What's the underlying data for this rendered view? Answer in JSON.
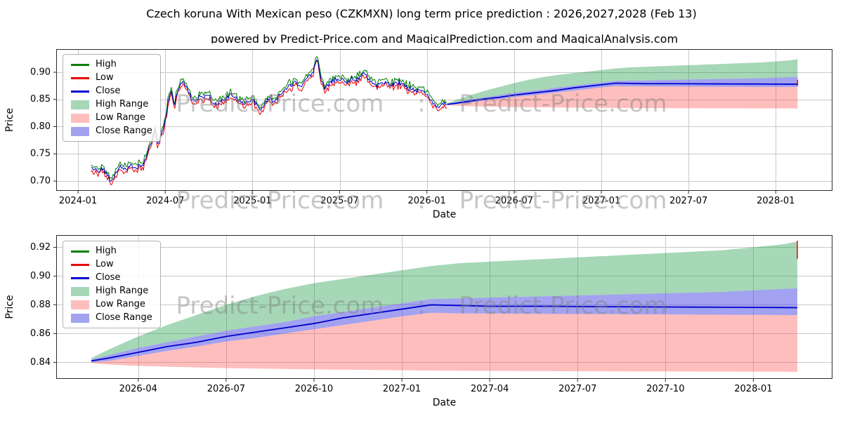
{
  "header": {
    "title": "Czech koruna With Mexican peso (CZKMXN) long term price prediction : 2026,2027,2028 (Feb 13)",
    "subtitle": "powered by Predict-Price.com and MagicalPrediction.com and MagicalAnalysis.com"
  },
  "watermark": {
    "text": "Predict-Price.com",
    "separator": ":"
  },
  "chart_data": {
    "type": "line",
    "title": "Czech koruna With Mexican peso (CZKMXN) long term price prediction : 2026,2027,2028 (Feb 13)",
    "subtitle": "powered by Predict-Price.com and MagicalPrediction.com and MagicalAnalysis.com",
    "grid": true,
    "legend_position": "upper left",
    "x_unit": "months_since_2024_01",
    "colors": {
      "high": "#008000",
      "low": "#e60000",
      "close": "#0000cd",
      "high_range": "rgba(0,140,50,0.35)",
      "low_range": "rgba(255,70,70,0.35)",
      "close_range": "rgba(70,70,225,0.5)",
      "grid": "#c9c9c9",
      "axis": "#2b2b2b"
    },
    "legend": {
      "items": [
        {
          "label": "High",
          "swatch": "line",
          "color": "#008000"
        },
        {
          "label": "Low",
          "swatch": "line",
          "color": "#e60000"
        },
        {
          "label": "Close",
          "swatch": "line",
          "color": "#0000cd"
        },
        {
          "label": "High Range",
          "swatch": "patch",
          "color": "rgba(0,140,50,0.35)"
        },
        {
          "label": "Low Range",
          "swatch": "patch",
          "color": "rgba(255,70,70,0.35)"
        },
        {
          "label": "Close Range",
          "swatch": "patch",
          "color": "rgba(70,70,225,0.5)"
        }
      ]
    },
    "subplots": [
      {
        "name": "history_and_forecast",
        "xlabel": "Date",
        "ylabel": "Price",
        "xlim": [
          -1.5,
          51.9
        ],
        "ylim": [
          0.682,
          0.9425
        ],
        "show_history": true,
        "xticks": [
          {
            "v": 0,
            "label": "2024-01"
          },
          {
            "v": 6,
            "label": "2024-07"
          },
          {
            "v": 12,
            "label": "2025-01"
          },
          {
            "v": 18,
            "label": "2025-07"
          },
          {
            "v": 24,
            "label": "2026-01"
          },
          {
            "v": 30,
            "label": "2026-07"
          },
          {
            "v": 36,
            "label": "2027-01"
          },
          {
            "v": 42,
            "label": "2027-07"
          },
          {
            "v": 48,
            "label": "2028-01"
          }
        ],
        "yticks": [
          {
            "v": 0.7,
            "label": "0.70"
          },
          {
            "v": 0.75,
            "label": "0.75"
          },
          {
            "v": 0.8,
            "label": "0.80"
          },
          {
            "v": 0.85,
            "label": "0.85"
          },
          {
            "v": 0.9,
            "label": "0.90"
          }
        ]
      },
      {
        "name": "forecast_detail",
        "xlabel": "Date",
        "ylabel": "Price",
        "xlim": [
          24.2,
          50.7
        ],
        "ylim": [
          0.8285,
          0.9285
        ],
        "show_history": false,
        "xticks": [
          {
            "v": 27,
            "label": "2026-04"
          },
          {
            "v": 30,
            "label": "2026-07"
          },
          {
            "v": 33,
            "label": "2026-10"
          },
          {
            "v": 36,
            "label": "2027-01"
          },
          {
            "v": 39,
            "label": "2027-04"
          },
          {
            "v": 42,
            "label": "2027-07"
          },
          {
            "v": 45,
            "label": "2027-10"
          },
          {
            "v": 48,
            "label": "2028-01"
          }
        ],
        "yticks": [
          {
            "v": 0.84,
            "label": "0.84"
          },
          {
            "v": 0.86,
            "label": "0.86"
          },
          {
            "v": 0.88,
            "label": "0.88"
          },
          {
            "v": 0.9,
            "label": "0.90"
          },
          {
            "v": 0.92,
            "label": "0.92"
          }
        ]
      }
    ],
    "historical": {
      "series": [
        "High",
        "Low",
        "Close"
      ],
      "anchors_x": [
        0.9,
        1.3,
        1.7,
        2.0,
        2.3,
        2.6,
        2.9,
        3.3,
        3.7,
        4.1,
        4.5,
        4.8,
        5.1,
        5.3,
        5.5,
        5.8,
        6.0,
        6.2,
        6.4,
        6.6,
        6.9,
        7.2,
        7.5,
        7.8,
        8.1,
        8.4,
        8.7,
        9.0,
        9.3,
        9.6,
        9.9,
        10.2,
        10.5,
        10.8,
        11.1,
        11.4,
        11.7,
        12.0,
        12.3,
        12.6,
        12.9,
        13.2,
        13.5,
        13.8,
        14.1,
        14.4,
        14.7,
        15.0,
        15.3,
        15.6,
        15.9,
        16.2,
        16.4,
        16.6,
        16.8,
        17.0,
        17.3,
        17.6,
        17.9,
        18.2,
        18.5,
        18.8,
        19.1,
        19.4,
        19.7,
        20.0,
        20.3,
        20.6,
        20.9,
        21.2,
        21.5,
        21.8,
        22.1,
        22.4,
        22.7,
        23.0,
        23.3,
        23.6,
        23.9,
        24.2,
        24.5,
        24.8,
        25.1,
        25.4
      ],
      "anchors_close": [
        0.724,
        0.72,
        0.723,
        0.713,
        0.696,
        0.718,
        0.725,
        0.722,
        0.728,
        0.726,
        0.733,
        0.752,
        0.775,
        0.8,
        0.763,
        0.79,
        0.81,
        0.845,
        0.865,
        0.838,
        0.87,
        0.885,
        0.872,
        0.852,
        0.846,
        0.86,
        0.853,
        0.857,
        0.84,
        0.842,
        0.846,
        0.852,
        0.86,
        0.855,
        0.846,
        0.843,
        0.848,
        0.85,
        0.84,
        0.832,
        0.845,
        0.852,
        0.846,
        0.855,
        0.862,
        0.87,
        0.878,
        0.882,
        0.875,
        0.885,
        0.892,
        0.9,
        0.93,
        0.905,
        0.88,
        0.87,
        0.878,
        0.885,
        0.888,
        0.885,
        0.88,
        0.89,
        0.885,
        0.892,
        0.898,
        0.886,
        0.88,
        0.876,
        0.883,
        0.88,
        0.875,
        0.878,
        0.882,
        0.876,
        0.87,
        0.872,
        0.865,
        0.868,
        0.858,
        0.85,
        0.843,
        0.838,
        0.84,
        0.842
      ],
      "noise": {
        "seed": 42,
        "step": 0.08,
        "close_amp": 0.009,
        "range_min": 0.0015,
        "range_amp": 0.0075
      }
    },
    "forecast": {
      "x": [
        25.4,
        26,
        27,
        28,
        29,
        30,
        31,
        32,
        33,
        34,
        35,
        36,
        37,
        38,
        39,
        40,
        41,
        42,
        43,
        44,
        45,
        46,
        47,
        48,
        49,
        49.5
      ],
      "close": [
        0.841,
        0.843,
        0.847,
        0.851,
        0.854,
        0.858,
        0.861,
        0.864,
        0.867,
        0.871,
        0.874,
        0.877,
        0.88,
        0.8795,
        0.879,
        0.879,
        0.879,
        0.8788,
        0.8787,
        0.8786,
        0.8785,
        0.8784,
        0.8783,
        0.8782,
        0.8781,
        0.878
      ],
      "close_upper": [
        0.842,
        0.845,
        0.85,
        0.854,
        0.858,
        0.862,
        0.865,
        0.868,
        0.872,
        0.875,
        0.878,
        0.881,
        0.884,
        0.8845,
        0.885,
        0.8855,
        0.886,
        0.8865,
        0.887,
        0.8875,
        0.888,
        0.8885,
        0.889,
        0.89,
        0.891,
        0.8915
      ],
      "close_lower": [
        0.84,
        0.841,
        0.8445,
        0.848,
        0.851,
        0.8545,
        0.857,
        0.86,
        0.863,
        0.866,
        0.869,
        0.872,
        0.8745,
        0.874,
        0.874,
        0.8738,
        0.8737,
        0.8736,
        0.8735,
        0.8734,
        0.8733,
        0.8732,
        0.8731,
        0.873,
        0.8729,
        0.8728
      ],
      "high_upper": [
        0.843,
        0.849,
        0.858,
        0.866,
        0.873,
        0.88,
        0.886,
        0.891,
        0.895,
        0.898,
        0.901,
        0.904,
        0.907,
        0.909,
        0.91,
        0.911,
        0.912,
        0.913,
        0.914,
        0.915,
        0.916,
        0.917,
        0.918,
        0.92,
        0.922,
        0.924
      ],
      "low_lower": [
        0.8395,
        0.8385,
        0.8375,
        0.837,
        0.8365,
        0.836,
        0.8357,
        0.8354,
        0.8351,
        0.8349,
        0.8347,
        0.8345,
        0.8343,
        0.8342,
        0.8341,
        0.834,
        0.8339,
        0.8338,
        0.8338,
        0.8337,
        0.8337,
        0.8336,
        0.8336,
        0.8335,
        0.8335,
        0.8334
      ]
    },
    "end_markers": [
      {
        "subplot": 0,
        "x": 49.5,
        "y0": 0.875,
        "y1": 0.886
      },
      {
        "subplot": 1,
        "x": 49.5,
        "y0": 0.912,
        "y1": 0.9245
      }
    ]
  }
}
